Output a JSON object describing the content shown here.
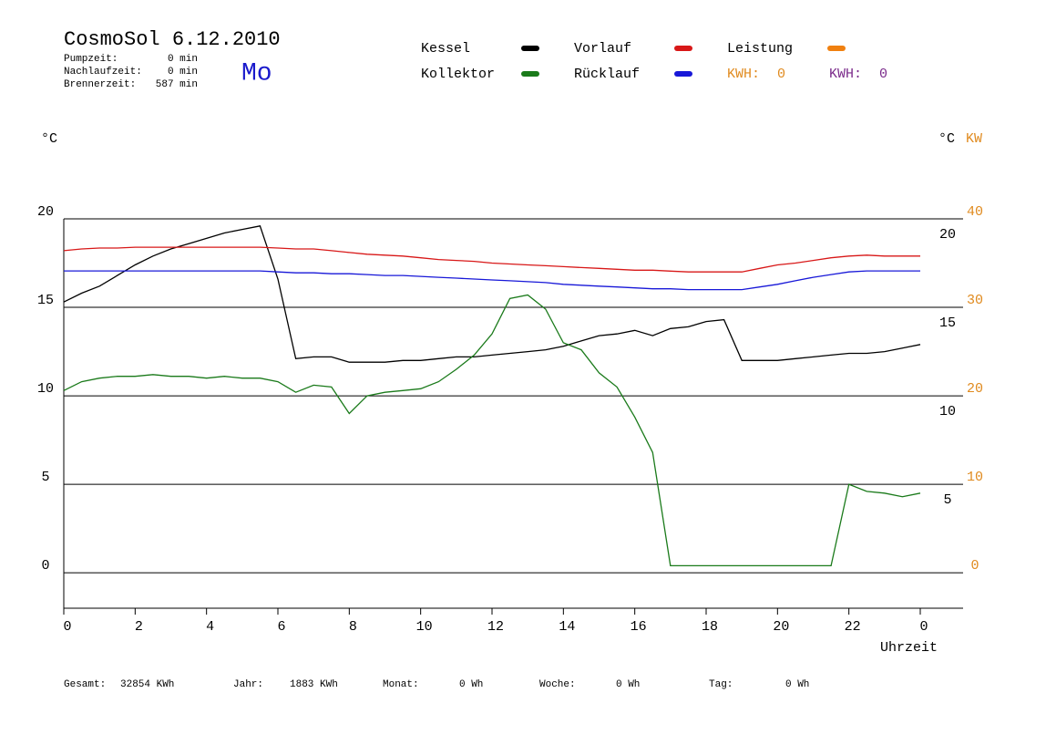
{
  "chart_data": {
    "type": "line",
    "title": "CosmoSol 6.12.2010",
    "day": "Mo",
    "stats": [
      {
        "label": "Pumpzeit:",
        "value": "0 min"
      },
      {
        "label": "Nachlaufzeit:",
        "value": "0 min"
      },
      {
        "label": "Brennerzeit:",
        "value": "587 min"
      }
    ],
    "kwh": [
      {
        "label": "KWH:",
        "value": 0,
        "color": "#e08a1e"
      },
      {
        "label": "KWH:",
        "value": 0,
        "color": "#7a2a8a"
      }
    ],
    "ylabel": "°C",
    "y2label_c": "°C",
    "y2label": "KW",
    "xlabel": "Uhrzeit",
    "totals": [
      {
        "label": "Gesamt:",
        "value": "32854 KWh"
      },
      {
        "label": "Jahr:",
        "value": "1883 KWh"
      },
      {
        "label": "Monat:",
        "value": "0 Wh"
      },
      {
        "label": "Woche:",
        "value": "0 Wh"
      },
      {
        "label": "Tag:",
        "value": "0 Wh"
      }
    ],
    "xlim": [
      0,
      25.2
    ],
    "xticks": [
      0,
      2,
      4,
      6,
      8,
      10,
      12,
      14,
      16,
      18,
      20,
      22,
      {
        "value": 24,
        "label": "0"
      }
    ],
    "ylim": [
      -2,
      20
    ],
    "yticks": [
      0,
      5,
      10,
      15,
      20
    ],
    "y_right_ticks": [
      20,
      15,
      10,
      5
    ],
    "y2lim": [
      -4,
      40
    ],
    "y2ticks": [
      0,
      10,
      20,
      30,
      40
    ],
    "grid": true,
    "x": [
      0,
      0.5,
      1,
      1.5,
      2,
      2.5,
      3,
      3.5,
      4,
      4.5,
      5,
      5.5,
      6,
      6.5,
      7,
      7.5,
      8,
      8.5,
      9,
      9.5,
      10,
      10.5,
      11,
      11.5,
      12,
      12.5,
      13,
      13.5,
      14,
      14.5,
      15,
      15.5,
      16,
      16.5,
      17,
      17.5,
      18,
      18.5,
      19,
      19.5,
      20,
      20.5,
      21,
      21.5,
      22,
      22.5,
      23,
      23.5,
      24
    ],
    "series": [
      {
        "name": "Kessel",
        "color": "#000000",
        "values": [
          15.3,
          15.8,
          16.2,
          16.8,
          17.4,
          17.9,
          18.3,
          18.6,
          18.9,
          19.2,
          19.4,
          19.6,
          16.6,
          12.1,
          12.2,
          12.2,
          11.9,
          11.9,
          11.9,
          12.0,
          12.0,
          12.1,
          12.2,
          12.2,
          12.3,
          12.4,
          12.5,
          12.6,
          12.8,
          13.1,
          13.4,
          13.5,
          13.7,
          13.4,
          13.8,
          13.9,
          14.2,
          14.3,
          12.0,
          12.0,
          12.0,
          12.1,
          12.2,
          12.3,
          12.4,
          12.4,
          12.5,
          12.7,
          12.9
        ]
      },
      {
        "name": "Kollektor",
        "color": "#1a7a1a",
        "values": [
          10.3,
          10.8,
          11.0,
          11.1,
          11.1,
          11.2,
          11.1,
          11.1,
          11.0,
          11.1,
          11.0,
          11.0,
          10.8,
          10.2,
          10.6,
          10.5,
          9.0,
          10.0,
          10.2,
          10.3,
          10.4,
          10.8,
          11.5,
          12.3,
          13.5,
          15.5,
          15.7,
          14.9,
          13.0,
          12.6,
          11.3,
          10.5,
          8.8,
          6.8,
          0.4,
          0.4,
          0.4,
          0.4,
          0.4,
          0.4,
          0.4,
          0.4,
          0.4,
          0.4,
          5.0,
          4.6,
          4.5,
          4.3,
          4.5
        ]
      },
      {
        "name": "Vorlauf",
        "color": "#d81818",
        "values": [
          18.2,
          18.3,
          18.35,
          18.35,
          18.4,
          18.4,
          18.4,
          18.4,
          18.4,
          18.4,
          18.4,
          18.4,
          18.35,
          18.3,
          18.3,
          18.2,
          18.1,
          18.0,
          17.95,
          17.9,
          17.8,
          17.7,
          17.65,
          17.6,
          17.5,
          17.45,
          17.4,
          17.35,
          17.3,
          17.25,
          17.2,
          17.15,
          17.1,
          17.1,
          17.05,
          17.0,
          17.0,
          17.0,
          17.0,
          17.2,
          17.4,
          17.5,
          17.65,
          17.8,
          17.9,
          17.95,
          17.9,
          17.9,
          17.9
        ]
      },
      {
        "name": "Rücklauf",
        "color": "#1818d8",
        "values": [
          17.06,
          17.06,
          17.06,
          17.06,
          17.06,
          17.06,
          17.06,
          17.06,
          17.06,
          17.06,
          17.06,
          17.06,
          17.0,
          16.95,
          16.95,
          16.9,
          16.9,
          16.85,
          16.8,
          16.8,
          16.75,
          16.7,
          16.65,
          16.6,
          16.55,
          16.5,
          16.45,
          16.4,
          16.3,
          16.25,
          16.2,
          16.15,
          16.1,
          16.05,
          16.05,
          16.0,
          16.0,
          16.0,
          16.0,
          16.15,
          16.3,
          16.5,
          16.7,
          16.85,
          17.0,
          17.06,
          17.06,
          17.06,
          17.06
        ]
      },
      {
        "name": "Leistung",
        "color": "#f08010",
        "axis": "y2",
        "values": [
          null,
          null,
          null,
          null,
          null,
          null,
          null,
          null,
          null,
          null,
          null,
          null,
          null,
          null,
          null,
          null,
          null,
          null,
          null,
          null,
          null,
          null,
          null,
          null,
          null,
          null,
          null,
          null,
          null,
          null,
          null,
          null,
          null,
          null,
          null,
          null,
          null,
          null,
          null,
          null,
          null,
          null,
          null,
          null,
          null,
          null,
          null,
          null,
          null
        ]
      }
    ]
  }
}
